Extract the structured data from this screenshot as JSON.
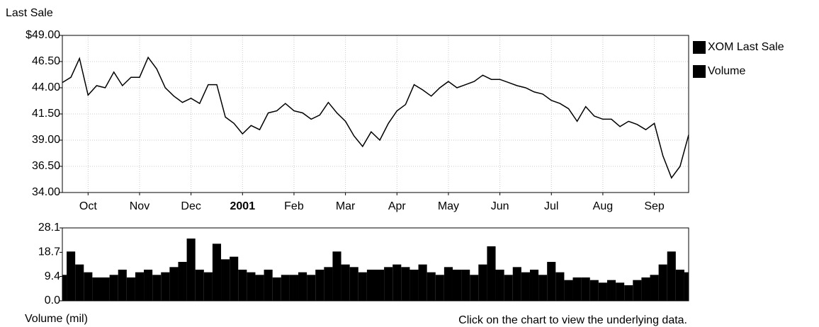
{
  "chart_data": [
    {
      "type": "line",
      "y_label": "Last Sale",
      "categories": [
        null,
        null,
        null,
        "Oct",
        null,
        null,
        null,
        null,
        null,
        "Nov",
        null,
        null,
        null,
        null,
        null,
        "Dec",
        null,
        null,
        null,
        null,
        null,
        "2001",
        null,
        null,
        null,
        null,
        null,
        "Feb",
        null,
        null,
        null,
        null,
        null,
        "Mar",
        null,
        null,
        null,
        null,
        null,
        "Apr",
        null,
        null,
        null,
        null,
        null,
        "May",
        null,
        null,
        null,
        null,
        null,
        "Jun",
        null,
        null,
        null,
        null,
        null,
        "Jul",
        null,
        null,
        null,
        null,
        null,
        "Aug",
        null,
        null,
        null,
        null,
        null,
        "Sep",
        null,
        null,
        null,
        null
      ],
      "series": [
        {
          "name": "XOM Last Sale",
          "color": "#000000",
          "values": [
            44.5,
            45.0,
            46.8,
            43.3,
            44.2,
            44.0,
            45.5,
            44.2,
            45.0,
            45.0,
            46.9,
            45.8,
            44.0,
            43.2,
            42.6,
            43.0,
            42.5,
            44.3,
            44.3,
            41.2,
            40.6,
            39.6,
            40.4,
            40.0,
            41.6,
            41.8,
            42.5,
            41.8,
            41.6,
            41.0,
            41.4,
            42.6,
            41.6,
            40.8,
            39.4,
            38.4,
            39.8,
            39.0,
            40.6,
            41.8,
            42.4,
            44.3,
            43.8,
            43.2,
            44.0,
            44.6,
            44.0,
            44.3,
            44.6,
            45.2,
            44.8,
            44.8,
            44.5,
            44.2,
            44.0,
            43.6,
            43.4,
            42.8,
            42.5,
            42.0,
            40.8,
            42.2,
            41.3,
            41.0,
            41.0,
            40.3,
            40.8,
            40.5,
            40.0,
            40.6,
            37.5,
            35.4,
            36.5,
            39.5
          ]
        }
      ],
      "ylim": [
        34,
        49
      ],
      "yticks": [
        {
          "value": 34,
          "label": "34.00"
        },
        {
          "value": 36.5,
          "label": "36.50"
        },
        {
          "value": 39,
          "label": "39.00"
        },
        {
          "value": 41.5,
          "label": "41.50"
        },
        {
          "value": 44,
          "label": "44.00"
        },
        {
          "value": 46.5,
          "label": "46.50"
        },
        {
          "value": 49,
          "label": "$49.00"
        }
      ],
      "grid": true,
      "legend": "right"
    },
    {
      "type": "bar",
      "y_label": "Volume (mil)",
      "series": [
        {
          "name": "Volume",
          "color": "#000000",
          "values": [
            10,
            19,
            14,
            11,
            9,
            9,
            10,
            12,
            9,
            11,
            12,
            10,
            11,
            13,
            15,
            24,
            12,
            11,
            22,
            16,
            17,
            12,
            11,
            10,
            12,
            9,
            10,
            10,
            11,
            10,
            12,
            13,
            19,
            14,
            13,
            11,
            12,
            12,
            13,
            14,
            13,
            12,
            14,
            11,
            10,
            13,
            12,
            12,
            10,
            14,
            21,
            12,
            10,
            13,
            11,
            12,
            10,
            15,
            11,
            8,
            9,
            9,
            8,
            7,
            8,
            7,
            6,
            8,
            9,
            10,
            14,
            19,
            12,
            11
          ]
        }
      ],
      "ylim": [
        0,
        28.1
      ],
      "yticks": [
        {
          "value": 0,
          "label": "0.0"
        },
        9.4,
        18.7,
        28.1
      ],
      "grid": false
    }
  ],
  "footer": "Click on the chart to view the underlying data."
}
